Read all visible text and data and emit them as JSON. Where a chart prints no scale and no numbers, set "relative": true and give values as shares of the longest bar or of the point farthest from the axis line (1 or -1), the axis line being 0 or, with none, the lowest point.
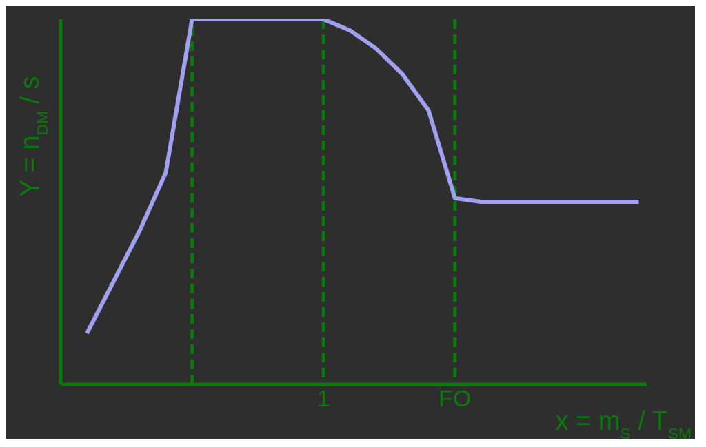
{
  "chart_data": {
    "type": "line",
    "relative": true,
    "xlabel": "x = m$_{S}$ / T$_{SM}$",
    "ylabel": "Y = n$_{DM}$ / s",
    "categories": [
      null,
      null,
      null,
      null,
      null,
      null,
      null,
      null,
      null,
      null,
      "1",
      null,
      null,
      null,
      null,
      "FO",
      null,
      null,
      null,
      null,
      null,
      null,
      null
    ],
    "series": [
      {
        "color": "#a0a0f0",
        "values": [
          null,
          0.14,
          0.28,
          0.42,
          0.58,
          1,
          1,
          1,
          1,
          1,
          1,
          0.97,
          0.92,
          0.85,
          0.75,
          0.51,
          0.5,
          0.5,
          0.5,
          0.5,
          0.5,
          0.5,
          0.5
        ]
      }
    ],
    "grid": "x",
    "legend": false,
    "marker": "none",
    "line_style": "solid"
  }
}
